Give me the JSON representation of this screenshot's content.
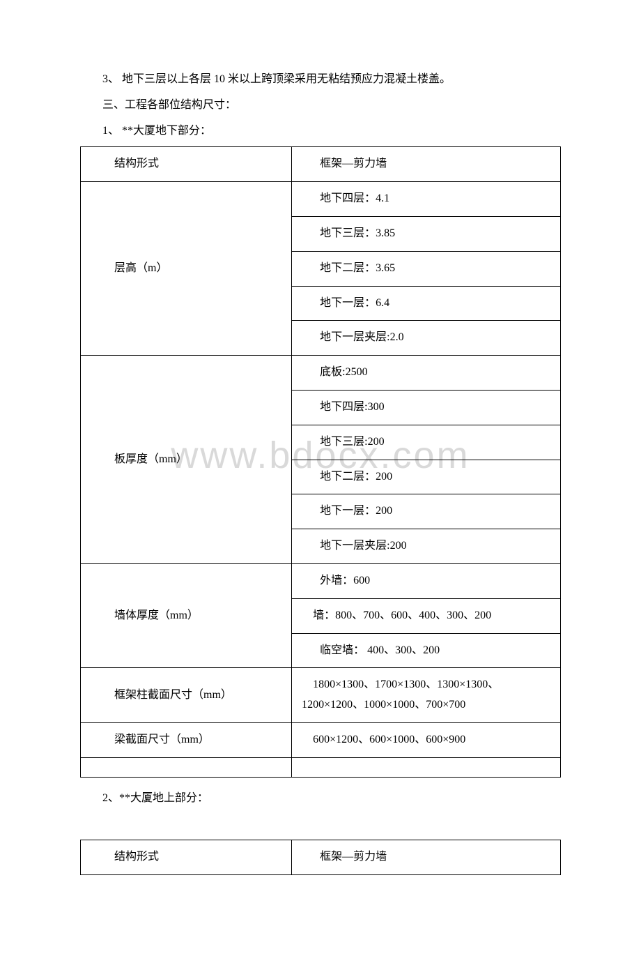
{
  "watermark": "www.bdocx.com",
  "paragraphs": {
    "p1": "3、 地下三层以上各层 10 米以上跨顶梁采用无粘结预应力混凝土楼盖。",
    "p2": "三、工程各部位结构尺寸：",
    "p3": "1、 **大厦地下部分：",
    "p4": "2、**大厦地上部分："
  },
  "table1": {
    "r1": {
      "left": "结构形式",
      "right": "框架—剪力墙"
    },
    "r2": {
      "left": "层高（m）",
      "right1": "地下四层：4.1",
      "right2": "地下三层：3.85",
      "right3": "地下二层：3.65",
      "right4": "地下一层：6.4",
      "right5": "地下一层夹层:2.0"
    },
    "r3": {
      "left": "板厚度（mm）",
      "right1": "底板:2500",
      "right2": "地下四层:300",
      "right3": "地下三层:200",
      "right4": "地下二层：200",
      "right5": "地下一层：200",
      "right6": "地下一层夹层:200"
    },
    "r4": {
      "left": "墙体厚度（mm）",
      "right1": "外墙：600",
      "right2": "　墙：800、700、600、400、300、200",
      "right3": "临空墙： 400、300、200"
    },
    "r5": {
      "left": "框架柱截面尺寸（mm）",
      "right": "　1800×1300、1700×1300、1300×1300、1200×1200、1000×1000、700×700"
    },
    "r6": {
      "left": "梁截面尺寸（mm）",
      "right": "　600×1200、600×1000、600×900"
    }
  },
  "table2": {
    "r1": {
      "left": "结构形式",
      "right": "框架—剪力墙"
    }
  },
  "colors": {
    "text": "#000000",
    "background": "#ffffff",
    "border": "#000000",
    "watermark": "#d9d9d9"
  }
}
